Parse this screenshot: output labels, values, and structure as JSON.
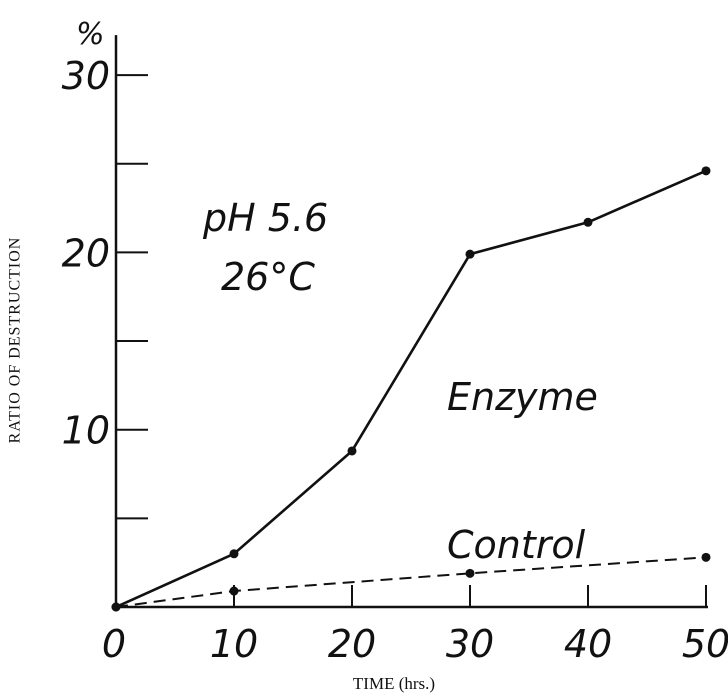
{
  "chart_data": {
    "type": "line",
    "ylabel": "RATIO OF DESTRUCTION",
    "xlabel": "TIME (hrs.)",
    "y_unit": "%",
    "xlim": [
      0,
      50
    ],
    "ylim": [
      0,
      30
    ],
    "x_ticks": [
      0,
      10,
      20,
      30,
      40,
      50
    ],
    "x_tick_labels": [
      "0",
      "10",
      "20",
      "30",
      "40",
      "50"
    ],
    "y_ticks": [
      0,
      5,
      10,
      15,
      20,
      25,
      30
    ],
    "y_tick_labels": [
      "",
      "",
      "10",
      "",
      "20",
      "",
      "30"
    ],
    "annotations": [
      "pH 5.6",
      "26°C"
    ],
    "series": [
      {
        "name": "Enzyme",
        "style": "solid",
        "x": [
          0,
          10,
          20,
          30,
          40,
          50
        ],
        "y": [
          0,
          3.0,
          8.8,
          19.9,
          21.7,
          24.6
        ]
      },
      {
        "name": "Control",
        "style": "dashed",
        "x": [
          0,
          10,
          30,
          50
        ],
        "y": [
          0,
          0.9,
          1.9,
          2.8
        ]
      }
    ]
  }
}
